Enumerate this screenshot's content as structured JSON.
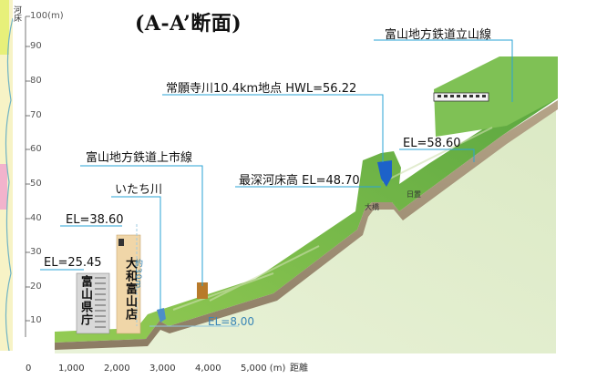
{
  "title": "(A-A’断面)",
  "axis": {
    "y_label": "河床",
    "y_top_label": "100(m)",
    "y_ticks": [
      "90",
      "80",
      "70",
      "60",
      "50",
      "40",
      "30",
      "20",
      "10"
    ],
    "x_ticks": [
      "0",
      "1,000",
      "2,000",
      "3,000",
      "4,000",
      "5,000 (m)"
    ],
    "x_unit": "距離"
  },
  "labels": {
    "toyama_chiho_tateyama": "富山地方鉄道立山線",
    "joganji_point": "常願寺川10.4km地点  HWL=56.22",
    "el_5860": "EL=58.60",
    "toyama_chiho_kamiichi": "富山地方鉄道上市線",
    "deepest_bed": "最深河床高  EL=48.70",
    "itachi_river": "いたち川",
    "el_3860": "EL=38.60",
    "el_2545": "EL=25.45",
    "el_800": "EL=8.00",
    "daiwa_store": "大和富山店",
    "prefecture_office": "富山県庁",
    "dim_value": "約30m",
    "small_left": "大橋",
    "small_right": "日置"
  }
}
